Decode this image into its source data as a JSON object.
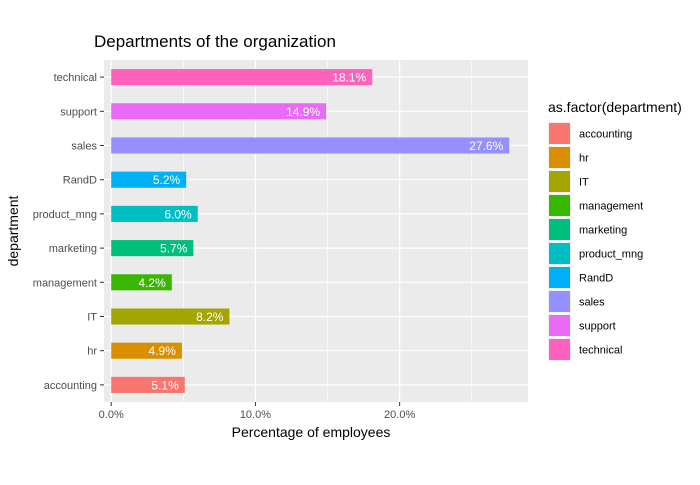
{
  "chart_data": {
    "type": "bar",
    "orientation": "horizontal",
    "title": "Departments of the organization",
    "xlabel": "Percentage of employees",
    "ylabel": "department",
    "legend_title": "as.factor(department)",
    "legend_position": "right",
    "grid": true,
    "xlim": [
      -0.005,
      0.289
    ],
    "x_ticks": [
      0,
      0.1,
      0.2
    ],
    "x_tick_labels": [
      "0.0%",
      "10.0%",
      "20.0%"
    ],
    "categories": [
      "accounting",
      "hr",
      "IT",
      "management",
      "marketing",
      "product_mng",
      "RandD",
      "sales",
      "support",
      "technical"
    ],
    "values": [
      0.051,
      0.049,
      0.082,
      0.042,
      0.057,
      0.06,
      0.052,
      0.276,
      0.149,
      0.181
    ],
    "labels": [
      "5.1%",
      "4.9%",
      "8.2%",
      "4.2%",
      "5.7%",
      "6.0%",
      "5.2%",
      "27.6%",
      "14.9%",
      "18.1%"
    ],
    "colors": [
      "#F8766D",
      "#D89000",
      "#A3A500",
      "#39B600",
      "#00BF7D",
      "#00BFC4",
      "#00B0F6",
      "#9590FF",
      "#E76BF3",
      "#FF62BC"
    ],
    "panel_background": "#EBEBEB",
    "grid_color": "#FFFFFF"
  }
}
